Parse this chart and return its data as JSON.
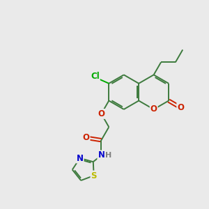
{
  "background_color": "#eaeaea",
  "bond_color": "#3d7a3d",
  "atom_colors": {
    "O": "#cc2200",
    "N": "#0000cc",
    "S": "#bbbb00",
    "Cl": "#00aa00",
    "H": "#808080"
  },
  "figsize": [
    3.0,
    3.0
  ],
  "dpi": 100,
  "lw": 1.4,
  "fs": 8.5
}
